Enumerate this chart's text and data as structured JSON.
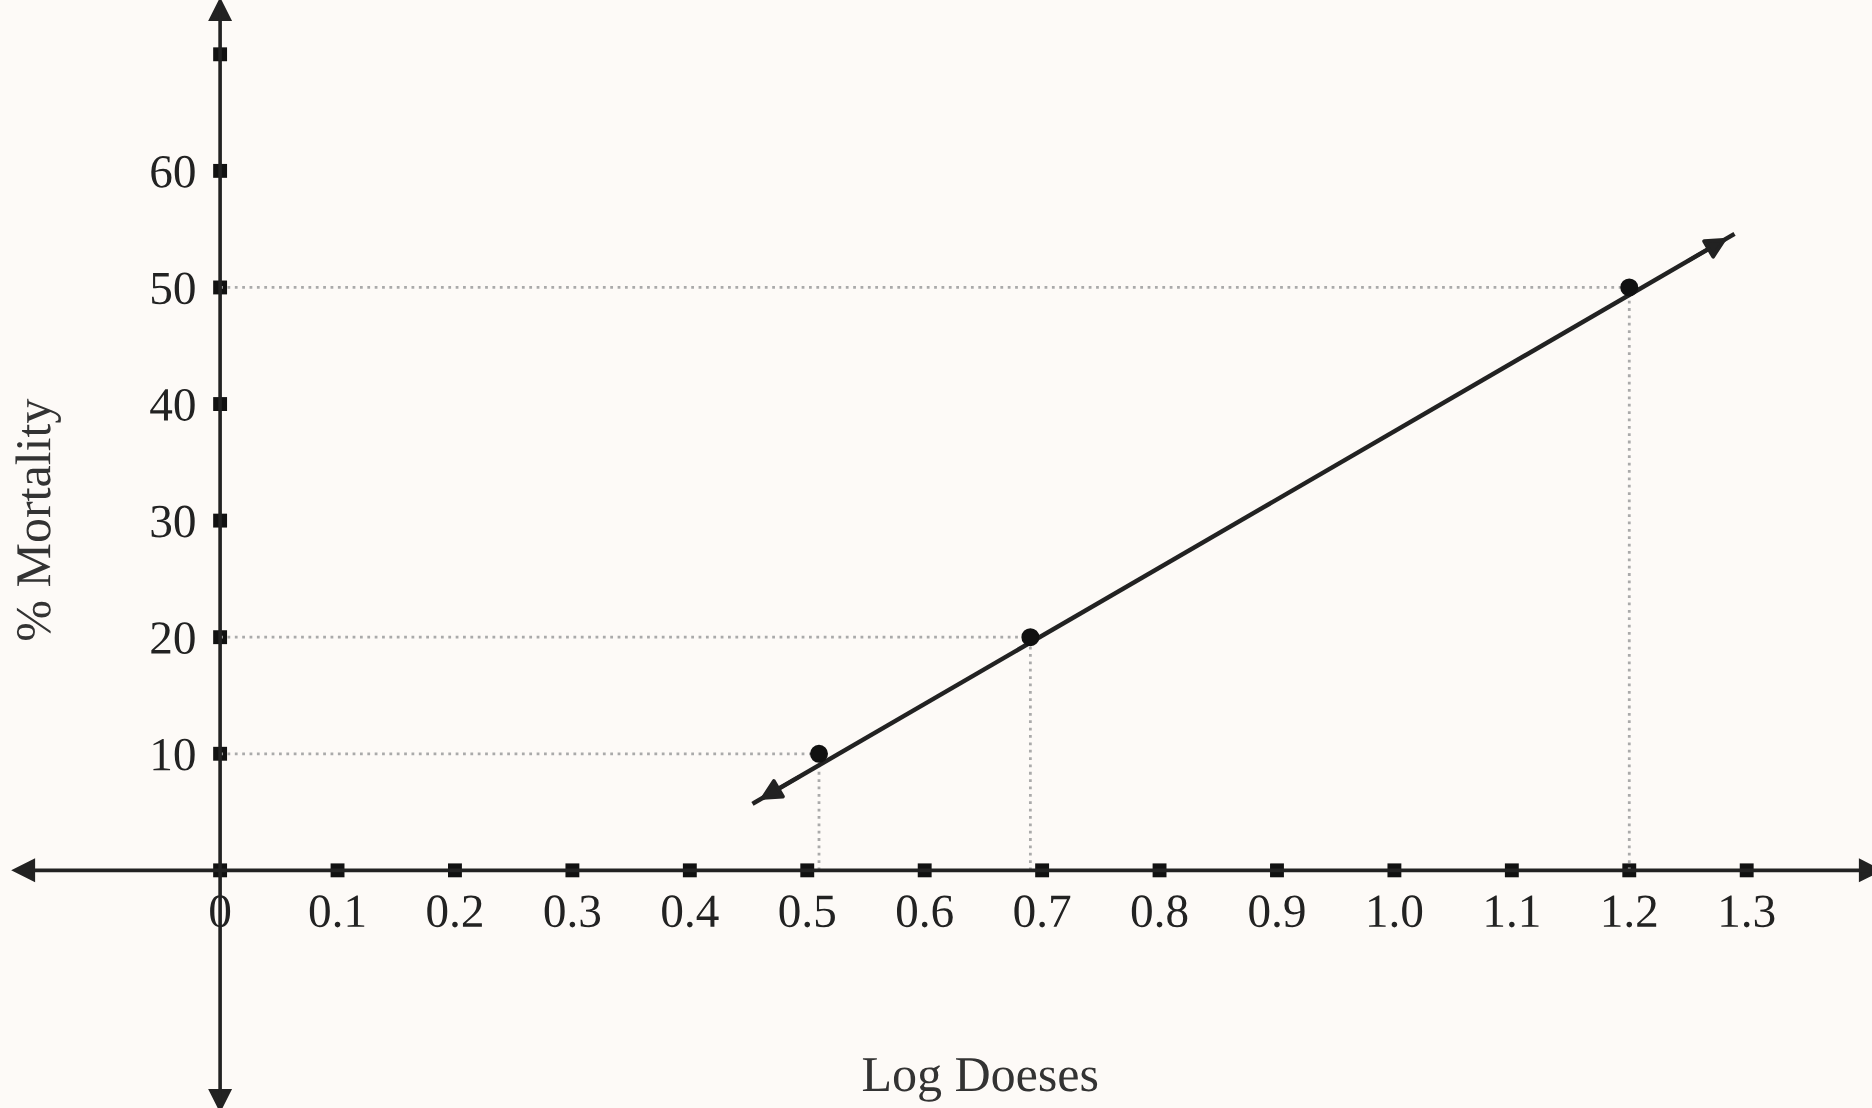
{
  "chart_data": {
    "type": "scatter",
    "xlabel": "Log Doeses",
    "ylabel": "% Mortality",
    "series": [
      {
        "type": "line",
        "color": "#222222",
        "x": [
          0.455,
          1.288
        ],
        "values": [
          5.8,
          54.5
        ],
        "line_style": "solid",
        "marker": "none"
      },
      {
        "color": "#111111",
        "x": [
          0.51,
          0.69,
          1.2
        ],
        "values": [
          10,
          20,
          50
        ],
        "marker": "circle"
      }
    ],
    "ref_lines": [
      {
        "axis": "y",
        "value": 10,
        "color": "#aaaaaa",
        "line_style": "dotted"
      },
      {
        "axis": "y",
        "value": 20,
        "color": "#aaaaaa",
        "line_style": "dotted"
      },
      {
        "axis": "y",
        "value": 50,
        "color": "#aaaaaa",
        "line_style": "dotted"
      },
      {
        "axis": "x",
        "value": 0.51,
        "color": "#aaaaaa",
        "line_style": "dotted"
      },
      {
        "axis": "x",
        "value": 0.69,
        "color": "#aaaaaa",
        "line_style": "dotted"
      },
      {
        "axis": "x",
        "value": 1.2,
        "color": "#aaaaaa",
        "line_style": "dotted"
      }
    ],
    "xlim": [
      -0.167,
      1.405
    ],
    "ylim": [
      -19.7,
      73.8
    ],
    "xticks": [
      0,
      0.1,
      0.2,
      0.3,
      0.4,
      0.5,
      0.6,
      0.7,
      0.8,
      0.9,
      {
        "value": 1.0,
        "label": "1.0"
      },
      1.1,
      1.2,
      1.3
    ],
    "yticks": [
      10,
      20,
      30,
      40,
      50,
      60,
      {
        "value": 70,
        "label": null
      }
    ],
    "grid": false,
    "legend": false
  }
}
